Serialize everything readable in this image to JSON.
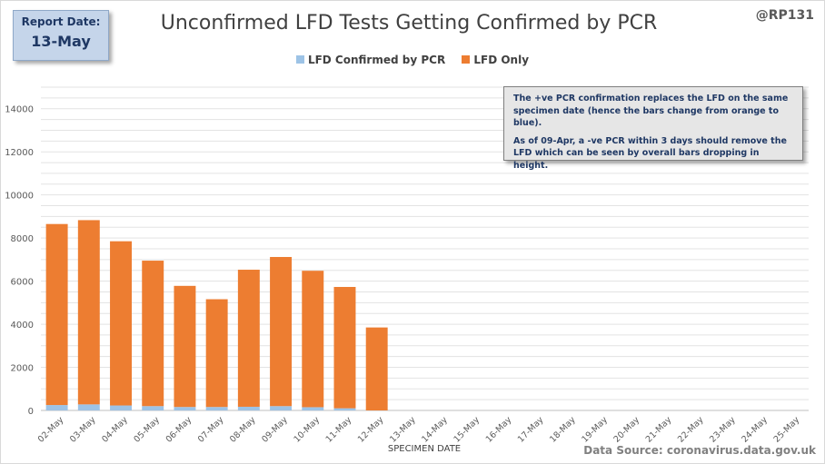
{
  "report": {
    "label": "Report Date:",
    "date": "13-May"
  },
  "handle": "@RP131",
  "source": "Data Source: coronavirus.data.gov.uk",
  "annotation": {
    "p1": "The +ve PCR confirmation replaces the LFD on the same specimen date (hence the bars change from orange to blue).",
    "p2": "As of 09-Apr, a -ve PCR within 3 days should remove the LFD which can be seen by overall bars dropping in height."
  },
  "chart_data": {
    "type": "bar",
    "stacked": true,
    "title": "Unconfirmed LFD Tests Getting Confirmed by PCR",
    "xlabel": "SPECIMEN DATE",
    "ylabel": "",
    "ylim": [
      0,
      15000
    ],
    "yticks": [
      0,
      2000,
      4000,
      6000,
      8000,
      10000,
      12000,
      14000
    ],
    "grid": true,
    "legend_position": "top",
    "categories": [
      "02-May",
      "03-May",
      "04-May",
      "05-May",
      "06-May",
      "07-May",
      "08-May",
      "09-May",
      "10-May",
      "11-May",
      "12-May",
      "13-May",
      "14-May",
      "15-May",
      "16-May",
      "17-May",
      "18-May",
      "19-May",
      "20-May",
      "21-May",
      "22-May",
      "23-May",
      "24-May",
      "25-May"
    ],
    "series": [
      {
        "name": "LFD Confirmed by PCR",
        "color": "#9dc3e6",
        "values": [
          250,
          280,
          230,
          200,
          160,
          160,
          170,
          200,
          150,
          100,
          0,
          0,
          0,
          0,
          0,
          0,
          0,
          0,
          0,
          0,
          0,
          0,
          0,
          0
        ]
      },
      {
        "name": "LFD Only",
        "color": "#ed7d31",
        "values": [
          8400,
          8550,
          7620,
          6750,
          5620,
          5000,
          6360,
          6920,
          6330,
          5630,
          3850,
          0,
          0,
          0,
          0,
          0,
          0,
          0,
          0,
          0,
          0,
          0,
          0,
          0
        ]
      }
    ]
  }
}
